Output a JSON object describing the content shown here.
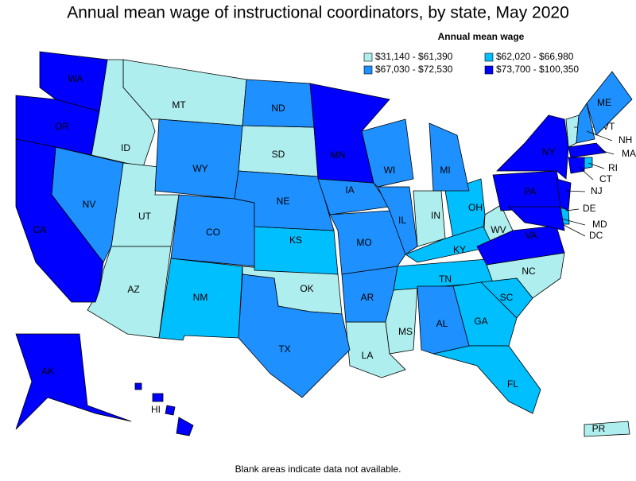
{
  "title": "Annual mean wage of instructional coordinators, by state, May 2020",
  "legend": {
    "title": "Annual mean wage",
    "items": [
      {
        "label": "$31,140 - $61,390",
        "color": "#afeeee",
        "states": [
          "MT",
          "ID",
          "SD",
          "UT",
          "AZ",
          "OK",
          "IN",
          "WV",
          "NC",
          "MS",
          "LA",
          "VT",
          "PR"
        ]
      },
      {
        "label": "$62,020 - $66,980",
        "color": "#00bfff",
        "states": [
          "NM",
          "KS",
          "OH",
          "KY",
          "TN",
          "SC",
          "GA",
          "FL",
          "DE",
          "RI",
          "DC"
        ]
      },
      {
        "label": "$67,030 - $72,530",
        "color": "#1e90ff",
        "states": [
          "ND",
          "WY",
          "NV",
          "CO",
          "NE",
          "IA",
          "WI",
          "MI",
          "IL",
          "MO",
          "AR",
          "TX",
          "AL",
          "ME",
          "NH"
        ]
      },
      {
        "label": "$73,700 - $100,350",
        "color": "#0000ff",
        "states": [
          "WA",
          "OR",
          "CA",
          "MN",
          "NY",
          "PA",
          "NJ",
          "VA",
          "MD",
          "MA",
          "CT",
          "AK",
          "HI"
        ]
      }
    ]
  },
  "footnote": "Blank areas indicate data not available."
}
